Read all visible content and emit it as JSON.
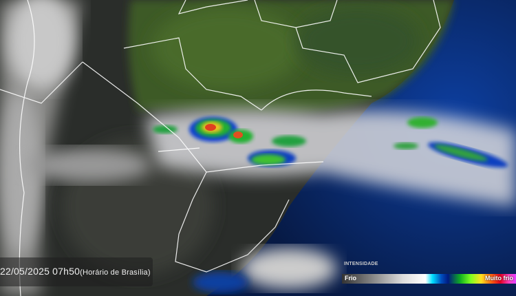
{
  "timestamp": {
    "datetime": "22/05/2025 07h50",
    "timezone": "(Horário de Brasília)"
  },
  "legend": {
    "title": "INTENSIDADE",
    "min_label": "Frio",
    "max_label": "Muito frio",
    "colors": [
      "#333333",
      "#dddddd",
      "#ffffff",
      "#00e0ff",
      "#001a80",
      "#10b020",
      "#ffe020",
      "#e00020",
      "#e040ff"
    ]
  },
  "map": {
    "type": "satellite-infrared",
    "land_color": "#3c5a2a",
    "ocean_color": "#0a2a6a"
  }
}
